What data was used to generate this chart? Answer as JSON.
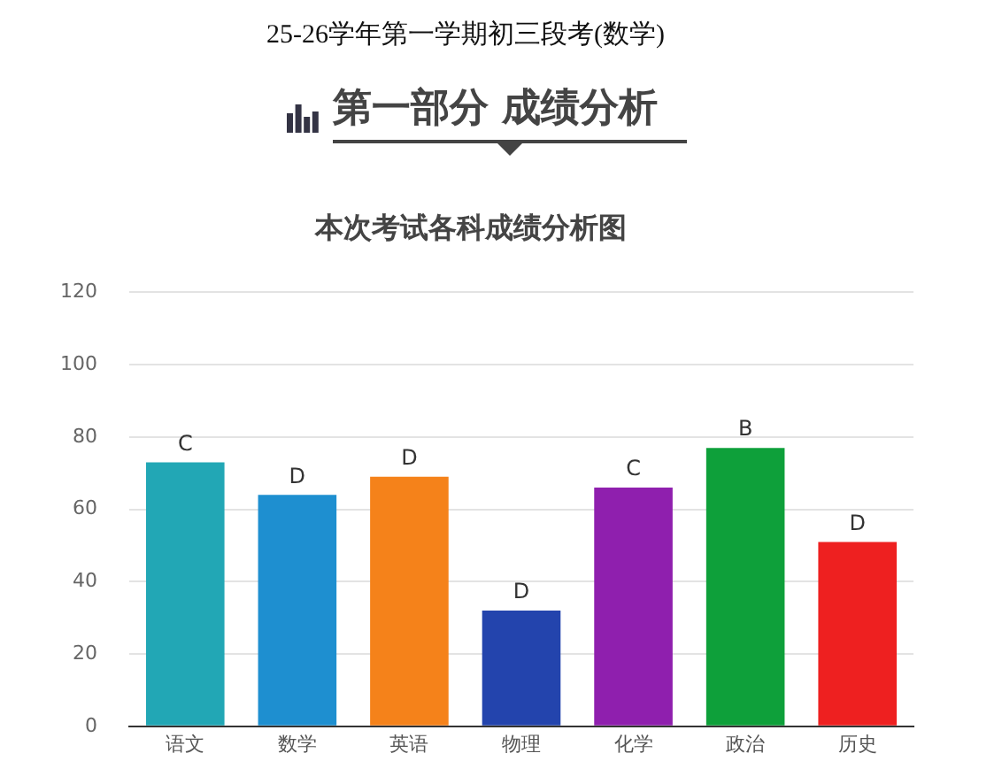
{
  "chart_data": {
    "type": "bar",
    "title": "本次考试各科成绩分析图",
    "annotations": [
      "25-26学年第一学期初三段考(数学)",
      "第一部分 成绩分析"
    ],
    "categories": [
      "语文",
      "数学",
      "英语",
      "物理",
      "化学",
      "政治",
      "历史"
    ],
    "values": [
      73,
      64,
      69,
      32,
      66,
      77,
      51
    ],
    "colors": [
      "#22a7b5",
      "#1e8fd0",
      "#f5821a",
      "#2344ad",
      "#8f1fae",
      "#0ea03a",
      "#ee2020"
    ],
    "value_labels": [
      "C",
      "D",
      "D",
      "D",
      "C",
      "B",
      "D"
    ],
    "ylim": [
      0,
      120
    ],
    "yticks": [
      0,
      20,
      40,
      60,
      80,
      100,
      120
    ],
    "grid": "y"
  }
}
